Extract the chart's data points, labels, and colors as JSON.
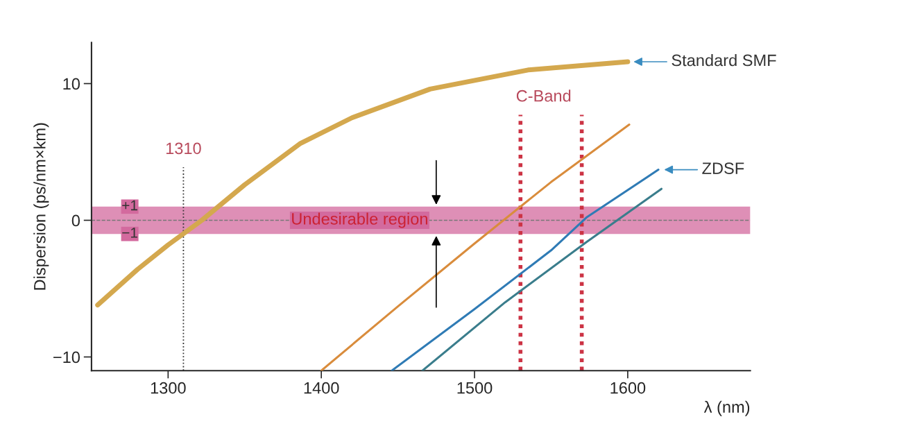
{
  "chart_data": {
    "type": "line",
    "xlabel": "λ (nm)",
    "ylabel": "Dispersion (ps/nm×km)",
    "xlim": [
      1250,
      1680
    ],
    "ylim": [
      -11,
      13
    ],
    "xticks": [
      1300,
      1400,
      1500,
      1600
    ],
    "yticks": [
      {
        "value": -10,
        "label": "−10"
      },
      0,
      10
    ],
    "grid": false,
    "legend": false,
    "marker": "none",
    "line_style": "solid",
    "series": [
      {
        "name": "Standard SMF",
        "color": "#d4a84e",
        "x": [
          1254,
          1280,
          1300,
          1322,
          1350,
          1386,
          1420,
          1471,
          1535,
          1600
        ],
        "values": [
          -6.2,
          -3.6,
          -1.8,
          0,
          2.6,
          5.6,
          7.5,
          9.6,
          11.0,
          11.6
        ]
      },
      {
        "color": "#d98c3c",
        "x": [
          1400,
          1450,
          1500,
          1550,
          1601
        ],
        "values": [
          -11,
          -6.3,
          -1.7,
          2.8,
          7.0
        ]
      },
      {
        "name": "ZDSF",
        "color": "#2f7bb5",
        "x": [
          1446,
          1500,
          1550,
          1573,
          1620
        ],
        "values": [
          -11,
          -6.5,
          -2.2,
          0.2,
          3.7
        ]
      },
      {
        "color": "#3a7d8c",
        "x": [
          1466,
          1520,
          1573,
          1622
        ],
        "values": [
          -11,
          -6.0,
          -1.6,
          2.3
        ]
      }
    ],
    "ref_lines": [
      {
        "axis": "x",
        "value": 1310,
        "label": "1310",
        "color": "#333333",
        "line_style": "dotted"
      },
      {
        "axis": "y",
        "value": 0,
        "color": "#777777",
        "line_style": "dashed"
      },
      {
        "axis": "x",
        "value": 1530,
        "label": "C-Band",
        "color": "#cc3344",
        "line_style": "dashed"
      },
      {
        "axis": "x",
        "value": 1570,
        "color": "#cc3344",
        "line_style": "dashed"
      }
    ],
    "bands": [
      {
        "axis": "y",
        "from": -1,
        "to": 1,
        "label": "Undesirable region",
        "color": "#d36a9e"
      }
    ],
    "annotations": [
      {
        "text": "+1",
        "x": 1275,
        "y": 1
      },
      {
        "text": "−1",
        "x": 1275,
        "y": -1
      }
    ]
  }
}
